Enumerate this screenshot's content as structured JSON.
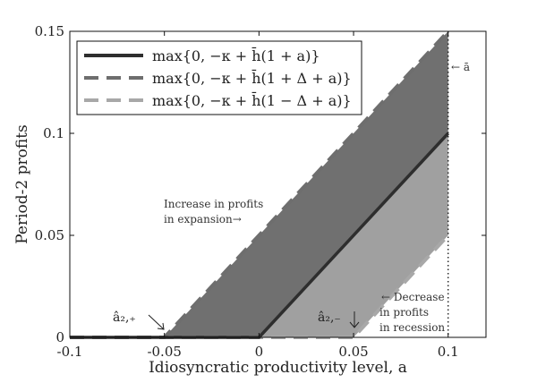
{
  "chart_data": {
    "type": "area",
    "xlabel": "Idiosyncratic productivity level, a",
    "ylabel": "Period-2 profits",
    "xlim": [
      -0.1,
      0.12
    ],
    "ylim": [
      0,
      0.15
    ],
    "xticks": [
      -0.1,
      -0.05,
      0,
      0.05,
      0.1
    ],
    "xtick_labels": [
      "-0.1",
      "-0.05",
      "0",
      "0.05",
      "0.1"
    ],
    "yticks": [
      0,
      0.05,
      0.1,
      0.15
    ],
    "ytick_labels": [
      "0",
      "0.05",
      "0.1",
      "0.15"
    ],
    "legend_position": "top-left",
    "series": [
      {
        "name": "max{0, −κ + h̄(1 + a)}",
        "style": "solid",
        "color": "#2e2e2e",
        "x": [
          -0.1,
          0,
          0.1
        ],
        "y": [
          0,
          0,
          0.1
        ]
      },
      {
        "name": "max{0, −κ + h̄(1 + Δ + a)}",
        "style": "dashed",
        "color": "#6e6e6e",
        "x": [
          -0.1,
          -0.05,
          0.1
        ],
        "y": [
          0,
          0,
          0.15
        ]
      },
      {
        "name": "max{0, −κ + h̄(1 − Δ + a)}",
        "style": "dashed",
        "color": "#a8a8a8",
        "x": [
          -0.1,
          0.05,
          0.1
        ],
        "y": [
          0,
          0,
          0.05
        ]
      }
    ],
    "regions": [
      {
        "label": "Increase in profits in expansion",
        "color": "#707070"
      },
      {
        "label": "Decrease in profits in recession",
        "color": "#a0a0a0"
      }
    ],
    "vline": {
      "x": 0.1,
      "label": "← ā"
    },
    "annotations": [
      {
        "id": "increase",
        "lines": [
          "Increase in profits",
          "in expansion→"
        ]
      },
      {
        "id": "decrease",
        "lines": [
          "← Decrease",
          "in profits",
          "in recession"
        ]
      },
      {
        "id": "a2plus",
        "text": "â₂,₊"
      },
      {
        "id": "a2minus",
        "text": "â₂,₋"
      }
    ]
  }
}
